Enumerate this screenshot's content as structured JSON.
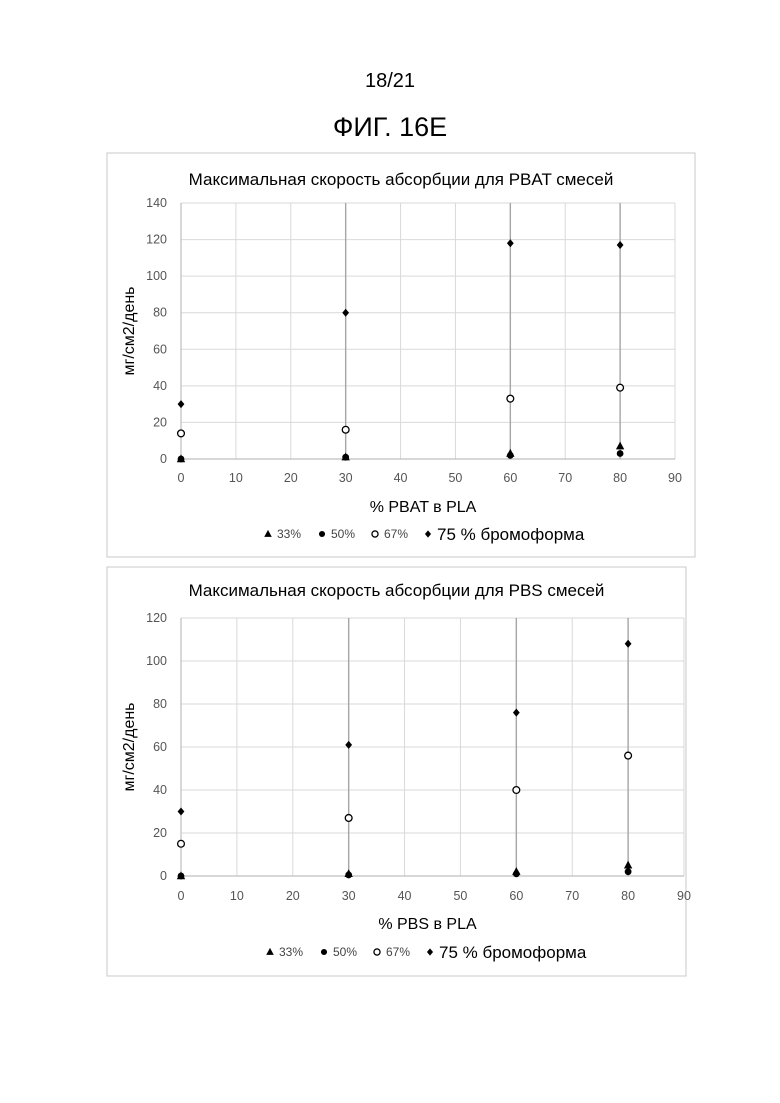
{
  "header": {
    "page_number": "18/21",
    "figure_title": "ФИГ. 16E"
  },
  "chart_data": [
    {
      "type": "scatter",
      "title": "Максимальная скорость абсорбции для PBAT смесей",
      "xlabel": "% PBAT в PLA",
      "ylabel": "мг/см2/день",
      "xlim": [
        0,
        90
      ],
      "ylim": [
        0,
        140
      ],
      "x_ticks": [
        0,
        10,
        20,
        30,
        40,
        50,
        60,
        70,
        80,
        90
      ],
      "y_ticks": [
        0,
        20,
        40,
        60,
        80,
        100,
        120,
        140
      ],
      "grid": true,
      "legend_position": "bottom",
      "series": [
        {
          "name": "33%",
          "marker": "triangle",
          "x": [
            0,
            30,
            60,
            80
          ],
          "y": [
            0,
            1,
            3,
            7
          ]
        },
        {
          "name": "50%",
          "marker": "circle-filled",
          "x": [
            0,
            30,
            60,
            80
          ],
          "y": [
            0,
            1,
            2,
            3
          ]
        },
        {
          "name": "67%",
          "marker": "circle-open",
          "x": [
            0,
            30,
            60,
            80
          ],
          "y": [
            14,
            16,
            33,
            39
          ]
        },
        {
          "name": "75 % бромоформа",
          "marker": "diamond",
          "x": [
            0,
            30,
            60,
            80
          ],
          "y": [
            30,
            80,
            118,
            117
          ]
        }
      ]
    },
    {
      "type": "scatter",
      "title": "Максимальная скорость абсорбции для PBS смесей",
      "xlabel": "% PBS в PLA",
      "ylabel": "мг/см2/день",
      "xlim": [
        0,
        90
      ],
      "ylim": [
        0,
        120
      ],
      "x_ticks": [
        0,
        10,
        20,
        30,
        40,
        50,
        60,
        70,
        80,
        90
      ],
      "y_ticks": [
        0,
        20,
        40,
        60,
        80,
        100,
        120
      ],
      "grid": true,
      "legend_position": "bottom",
      "series": [
        {
          "name": "33%",
          "marker": "triangle",
          "x": [
            0,
            30,
            60,
            80
          ],
          "y": [
            0,
            1,
            2,
            5
          ]
        },
        {
          "name": "50%",
          "marker": "circle-filled",
          "x": [
            0,
            30,
            60,
            80
          ],
          "y": [
            0,
            0.5,
            1,
            2
          ]
        },
        {
          "name": "67%",
          "marker": "circle-open",
          "x": [
            0,
            30,
            60,
            80
          ],
          "y": [
            15,
            27,
            40,
            56
          ]
        },
        {
          "name": "75 % бромоформа",
          "marker": "diamond",
          "x": [
            0,
            30,
            60,
            80
          ],
          "y": [
            30,
            61,
            76,
            108
          ]
        }
      ]
    }
  ]
}
